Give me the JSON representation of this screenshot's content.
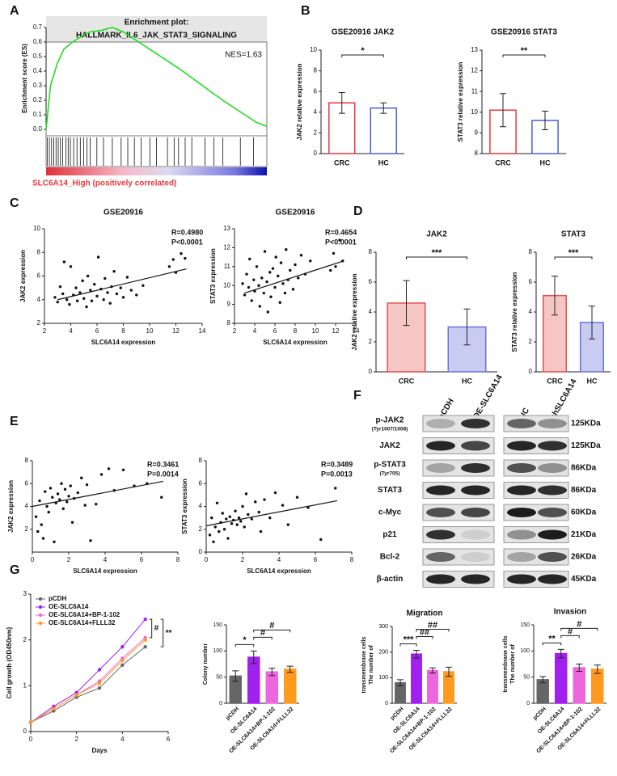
{
  "panels": [
    "A",
    "B",
    "C",
    "D",
    "E",
    "F",
    "G"
  ],
  "chart_data": [
    {
      "type": "enrichment",
      "title": "Enrichment plot:",
      "subtitle": "HALLMARK_IL6_JAK_STAT3_SIGNALING",
      "ylabel": "Enrichment score (ES)",
      "annotation": "NES=1.63",
      "footer": "SLC6A14_High (positively correlated)",
      "color": "#22dd22",
      "x": [
        0,
        0.02,
        0.05,
        0.08,
        0.12,
        0.16,
        0.2,
        0.25,
        0.3,
        0.35,
        0.4,
        0.5,
        0.6,
        0.7,
        0.8,
        0.9,
        0.95,
        1.0
      ],
      "values": [
        0,
        0.3,
        0.45,
        0.55,
        0.6,
        0.64,
        0.67,
        0.68,
        0.7,
        0.67,
        0.62,
        0.52,
        0.42,
        0.31,
        0.2,
        0.1,
        0.05,
        0.02
      ],
      "hits": [
        0.005,
        0.015,
        0.025,
        0.035,
        0.045,
        0.055,
        0.065,
        0.075,
        0.09,
        0.1,
        0.11,
        0.125,
        0.14,
        0.155,
        0.17,
        0.185,
        0.2,
        0.23,
        0.26,
        0.3,
        0.34,
        0.37,
        0.4,
        0.43,
        0.47,
        0.5,
        0.55,
        0.58,
        0.6,
        0.63,
        0.66,
        0.72,
        0.76,
        0.8,
        0.88,
        0.94
      ],
      "xlim": [
        0,
        1
      ],
      "ylim": [
        0,
        0.7
      ],
      "yticks": [
        {
          "value": 0,
          "label": "0.0"
        },
        0.1,
        0.2,
        0.3,
        0.4,
        0.5,
        0.6,
        0.7
      ]
    },
    {
      "type": "bar",
      "title": "GSE20916 JAK2",
      "ylabel": "JAK2 relative expression",
      "categories": [
        "CRC",
        "HC"
      ],
      "values": [
        4.9,
        4.4
      ],
      "errors": [
        1.0,
        0.5
      ],
      "colors": [
        "#ffffff",
        "#ffffff"
      ],
      "edge_colors": [
        "#e8383d",
        "#4a5fd6"
      ],
      "ylim": [
        0,
        10
      ],
      "yticks": [
        0,
        2,
        4,
        6,
        8,
        10
      ],
      "significance": [
        {
          "label": "*",
          "between": [
            "CRC",
            "HC"
          ]
        }
      ]
    },
    {
      "type": "bar",
      "title": "GSE20916 STAT3",
      "ylabel": "STAT3 relative expression",
      "categories": [
        "CRC",
        "HC"
      ],
      "values": [
        10.1,
        9.6
      ],
      "errors": [
        0.8,
        0.45
      ],
      "colors": [
        "#ffffff",
        "#ffffff"
      ],
      "edge_colors": [
        "#e8383d",
        "#4a5fd6"
      ],
      "ylim": [
        8,
        13
      ],
      "yticks": [
        8,
        9,
        10,
        11,
        12,
        13
      ],
      "significance": [
        {
          "label": "**",
          "between": [
            "CRC",
            "HC"
          ]
        }
      ]
    },
    {
      "type": "scatter",
      "title": "GSE20916",
      "xlabel": "SLC6A14 expression",
      "ylabel": "JAK2 expression",
      "stats": [
        "R=0.4980",
        "P<0.0001"
      ],
      "x": [
        2.8,
        3.0,
        3.2,
        3.4,
        3.5,
        3.7,
        3.9,
        4.0,
        4.2,
        4.4,
        4.5,
        4.7,
        4.9,
        5.0,
        5.2,
        5.3,
        5.5,
        5.6,
        5.8,
        6.0,
        6.1,
        6.3,
        6.5,
        6.6,
        6.8,
        7.0,
        7.1,
        7.3,
        7.5,
        7.8,
        8.0,
        8.3,
        8.6,
        9.0,
        9.5,
        11.5,
        11.8,
        12.0,
        12.4,
        12.7
      ],
      "values": [
        4.2,
        3.8,
        5.1,
        4.5,
        7.2,
        4.0,
        3.6,
        6.8,
        4.4,
        5.0,
        3.9,
        4.6,
        5.6,
        4.1,
        3.4,
        6.0,
        4.8,
        3.9,
        5.3,
        4.3,
        7.6,
        4.9,
        4.0,
        5.8,
        4.6,
        3.7,
        5.1,
        6.4,
        4.5,
        5.0,
        4.2,
        5.9,
        4.8,
        4.4,
        5.2,
        6.8,
        7.4,
        6.3,
        7.9,
        7.5
      ],
      "fit_x": [
        3,
        12.8
      ],
      "fit_y": [
        4.0,
        6.6
      ],
      "xlim": [
        2,
        14
      ],
      "xticks": [
        2,
        4,
        6,
        8,
        10,
        12,
        14
      ],
      "ylim": [
        2,
        10
      ],
      "yticks": [
        2,
        4,
        6,
        8,
        10
      ]
    },
    {
      "type": "scatter",
      "title": "GSE20916",
      "xlabel": "SLC6A14 expression",
      "ylabel": "STAT3 expression",
      "stats": [
        "R=0.4654",
        "P<0.0001"
      ],
      "x": [
        2.8,
        3.0,
        3.2,
        3.4,
        3.5,
        3.7,
        3.9,
        4.0,
        4.2,
        4.4,
        4.5,
        4.7,
        4.9,
        5.0,
        5.2,
        5.3,
        5.5,
        5.6,
        5.8,
        6.0,
        6.1,
        6.3,
        6.5,
        6.6,
        6.8,
        7.0,
        7.1,
        7.3,
        7.5,
        7.8,
        8.0,
        8.3,
        8.6,
        9.0,
        9.5,
        11.5,
        11.8,
        12.0,
        12.4,
        12.7
      ],
      "values": [
        10.1,
        9.5,
        10.6,
        9.9,
        11.4,
        9.2,
        10.3,
        9.7,
        11.0,
        10.0,
        8.9,
        10.4,
        9.6,
        11.8,
        10.2,
        8.6,
        10.7,
        9.4,
        10.9,
        9.9,
        11.5,
        10.5,
        9.1,
        11.2,
        10.1,
        9.6,
        11.9,
        10.3,
        10.8,
        9.8,
        11.1,
        10.4,
        11.6,
        10.6,
        11.3,
        10.8,
        11.7,
        11.0,
        12.4,
        11.3
      ],
      "fit_x": [
        3,
        12.8
      ],
      "fit_y": [
        9.6,
        11.3
      ],
      "xlim": [
        2,
        14
      ],
      "xticks": [
        2,
        4,
        6,
        8,
        10,
        12,
        14
      ],
      "ylim": [
        8,
        13
      ],
      "yticks": [
        8,
        9,
        10,
        11,
        12,
        13
      ]
    },
    {
      "type": "bar",
      "title": "JAK2",
      "ylabel": "JAK2 relative expression",
      "categories": [
        "CRC",
        "HC"
      ],
      "values": [
        4.6,
        3.0
      ],
      "errors": [
        1.5,
        1.2
      ],
      "colors": [
        "#f6c6c6",
        "#c9ccf2"
      ],
      "edge_colors": [
        "#e05050",
        "#6a73d8"
      ],
      "ylim": [
        0,
        8
      ],
      "yticks": [
        0,
        2,
        4,
        6,
        8
      ],
      "significance": [
        {
          "label": "***",
          "between": [
            "CRC",
            "HC"
          ]
        }
      ]
    },
    {
      "type": "bar",
      "title": "STAT3",
      "ylabel": "STAT3 relative expression",
      "categories": [
        "CRC",
        "HC"
      ],
      "values": [
        5.1,
        3.3
      ],
      "errors": [
        1.3,
        1.1
      ],
      "colors": [
        "#f6c6c6",
        "#c9ccf2"
      ],
      "edge_colors": [
        "#e05050",
        "#6a73d8"
      ],
      "ylim": [
        0,
        8
      ],
      "yticks": [
        0,
        2,
        4,
        6,
        8
      ],
      "significance": [
        {
          "label": "***",
          "between": [
            "CRC",
            "HC"
          ]
        }
      ]
    },
    {
      "type": "scatter",
      "xlabel": "SLC6A14 expression",
      "ylabel": "JAK2 expression",
      "stats": [
        "R=0.3461",
        "P=0.0014"
      ],
      "x": [
        0.2,
        0.3,
        0.4,
        0.5,
        0.6,
        0.7,
        0.8,
        0.9,
        1.0,
        1.1,
        1.2,
        1.3,
        1.4,
        1.5,
        1.6,
        1.7,
        1.8,
        1.9,
        2.0,
        2.1,
        2.2,
        2.3,
        2.5,
        2.7,
        2.9,
        3.0,
        3.2,
        3.5,
        3.8,
        4.2,
        4.5,
        5.0,
        5.6,
        6.3,
        7.1
      ],
      "values": [
        3.1,
        1.8,
        4.5,
        2.4,
        1.2,
        5.3,
        4.0,
        3.5,
        5.6,
        4.8,
        0.9,
        4.3,
        5.1,
        4.6,
        6.0,
        3.8,
        5.5,
        4.4,
        4.9,
        5.8,
        2.6,
        4.7,
        5.2,
        6.5,
        4.1,
        5.9,
        1.0,
        4.2,
        6.8,
        7.3,
        5.4,
        7.2,
        5.8,
        6.0,
        4.8
      ],
      "fit_x": [
        0,
        7.2
      ],
      "fit_y": [
        4.0,
        6.2
      ],
      "xlim": [
        0,
        8
      ],
      "xticks": [
        0,
        2,
        4,
        6,
        8
      ],
      "ylim": [
        0,
        8
      ],
      "yticks": [
        2,
        4,
        6,
        8
      ]
    },
    {
      "type": "scatter",
      "xlabel": "SLC6A14 expression",
      "ylabel": "STAT3 expression",
      "stats": [
        "R=0.3489",
        "P=0.0013"
      ],
      "x": [
        0.2,
        0.3,
        0.4,
        0.5,
        0.6,
        0.7,
        0.8,
        0.9,
        1.0,
        1.1,
        1.2,
        1.3,
        1.4,
        1.5,
        1.6,
        1.7,
        1.8,
        1.9,
        2.0,
        2.1,
        2.2,
        2.3,
        2.5,
        2.7,
        2.9,
        3.0,
        3.2,
        3.5,
        3.8,
        4.2,
        4.5,
        5.0,
        5.6,
        6.3,
        7.1
      ],
      "values": [
        1.5,
        3.0,
        0.9,
        2.2,
        4.3,
        1.8,
        2.6,
        3.4,
        2.0,
        2.9,
        1.2,
        3.1,
        2.5,
        2.8,
        3.6,
        2.4,
        3.0,
        2.7,
        4.0,
        2.2,
        5.1,
        3.3,
        2.9,
        4.4,
        3.5,
        1.8,
        4.6,
        3.0,
        5.2,
        4.1,
        2.4,
        4.8,
        3.9,
        1.1,
        5.6
      ],
      "fit_x": [
        0,
        7.2
      ],
      "fit_y": [
        2.3,
        4.5
      ],
      "xlim": [
        0,
        8
      ],
      "xticks": [
        0,
        2,
        4,
        6,
        8
      ],
      "ylim": [
        0,
        8
      ],
      "yticks": [
        0,
        2,
        4,
        6,
        8
      ]
    },
    {
      "type": "line",
      "xlabel": "Days",
      "ylabel": "Cell growth (OD450nm)",
      "x": [
        0,
        1,
        2,
        3,
        4,
        5
      ],
      "xlim": [
        0,
        6
      ],
      "xticks": [
        0,
        2,
        4,
        6
      ],
      "ylim": [
        0,
        3
      ],
      "yticks": [
        0,
        1,
        2,
        3
      ],
      "series": [
        {
          "name": "pCDH",
          "color": "#666666",
          "values": [
            0.2,
            0.45,
            0.75,
            0.95,
            1.45,
            1.85
          ]
        },
        {
          "name": "OE-SLC6A14",
          "color": "#a020f0",
          "values": [
            0.2,
            0.55,
            0.85,
            1.35,
            1.85,
            2.45
          ]
        },
        {
          "name": "OE-SLC6A14+BP-1-102",
          "color": "#ee66dd",
          "values": [
            0.2,
            0.5,
            0.8,
            1.1,
            1.6,
            2.05
          ]
        },
        {
          "name": "OE-SLC6A14+FLLL32",
          "color": "#ff9a1f",
          "values": [
            0.2,
            0.5,
            0.8,
            1.05,
            1.55,
            2.0
          ]
        }
      ],
      "significance": [
        {
          "label": "#",
          "between": [
            "OE-SLC6A14",
            "OE-SLC6A14+BP-1-102"
          ]
        },
        {
          "label": "**",
          "between": [
            "OE-SLC6A14",
            "pCDH"
          ]
        }
      ]
    },
    {
      "type": "bar",
      "ylabel": "Colony number",
      "categories": [
        "pCDH",
        "OE-SLC6A14",
        "OE-SLC6A14+BP-1-102",
        "OE-SLC6A14+FLLL32"
      ],
      "values": [
        52,
        88,
        60,
        65
      ],
      "errors": [
        10,
        12,
        7,
        6
      ],
      "colors": [
        "#666666",
        "#a020f0",
        "#ee66dd",
        "#ff9a1f"
      ],
      "edge_colors": [
        "#666666",
        "#a020f0",
        "#ee66dd",
        "#ff9a1f"
      ],
      "ylim": [
        0,
        150
      ],
      "yticks": [
        0,
        50,
        100,
        150
      ],
      "significance": [
        {
          "label": "*",
          "between": [
            "pCDH",
            "OE-SLC6A14"
          ]
        },
        {
          "label": "#",
          "between": [
            "OE-SLC6A14",
            "OE-SLC6A14+BP-1-102"
          ]
        },
        {
          "label": "#",
          "between": [
            "OE-SLC6A14",
            "OE-SLC6A14+FLLL32"
          ]
        }
      ]
    },
    {
      "type": "bar",
      "title": "Migration",
      "ylabel": [
        "The number of",
        "transmembrane cells"
      ],
      "categories": [
        "pCDH",
        "OE-SLC6A14",
        "OE-SLC6A14+BP-1-102",
        "OE-SLC6A14+FLLL32"
      ],
      "values": [
        80,
        192,
        128,
        123
      ],
      "errors": [
        12,
        15,
        10,
        18
      ],
      "colors": [
        "#666666",
        "#a020f0",
        "#ee66dd",
        "#ff9a1f"
      ],
      "edge_colors": [
        "#666666",
        "#a020f0",
        "#ee66dd",
        "#ff9a1f"
      ],
      "ylim": [
        0,
        300
      ],
      "yticks": [
        0,
        100,
        200,
        300
      ],
      "significance": [
        {
          "label": "***",
          "between": [
            "pCDH",
            "OE-SLC6A14"
          ]
        },
        {
          "label": "##",
          "between": [
            "OE-SLC6A14",
            "OE-SLC6A14+BP-1-102"
          ]
        },
        {
          "label": "##",
          "between": [
            "OE-SLC6A14",
            "OE-SLC6A14+FLLL32"
          ]
        }
      ]
    },
    {
      "type": "bar",
      "title": "Invasion",
      "ylabel": [
        "The number of",
        "transmembrane cells"
      ],
      "categories": [
        "pCDH",
        "OE-SLC6A14",
        "OE-SLC6A14+BP-1-102",
        "OE-SLC6A14+FLLL32"
      ],
      "values": [
        45,
        95,
        68,
        65
      ],
      "errors": [
        6,
        8,
        7,
        8
      ],
      "colors": [
        "#666666",
        "#a020f0",
        "#ee66dd",
        "#ff9a1f"
      ],
      "edge_colors": [
        "#666666",
        "#a020f0",
        "#ee66dd",
        "#ff9a1f"
      ],
      "ylim": [
        0,
        150
      ],
      "yticks": [
        0,
        50,
        100,
        150
      ],
      "significance": [
        {
          "label": "**",
          "between": [
            "pCDH",
            "OE-SLC6A14"
          ]
        },
        {
          "label": "#",
          "between": [
            "OE-SLC6A14",
            "OE-SLC6A14+BP-1-102"
          ]
        },
        {
          "label": "#",
          "between": [
            "OE-SLC6A14",
            "OE-SLC6A14+FLLL32"
          ]
        }
      ]
    }
  ],
  "blot": {
    "left_lanes": [
      "pCDH",
      "OE-SLC6A14"
    ],
    "right_lanes": [
      "NC",
      "shSLC6A14"
    ],
    "rows": [
      {
        "label": "p-JAK2",
        "sublabel": "(Tyr1007/1008)",
        "size": "125KDa"
      },
      {
        "label": "JAK2",
        "size": "125KDa"
      },
      {
        "label": "p-STAT3",
        "sublabel": "(Tyr705)",
        "size": "86KDa"
      },
      {
        "label": "STAT3",
        "size": "86KDa"
      },
      {
        "label": "c-Myc",
        "size": "60KDa"
      },
      {
        "label": "p21",
        "size": "21KDa"
      },
      {
        "label": "Bcl-2",
        "size": "26KDa"
      },
      {
        "label": "β-actin",
        "size": "45KDa"
      }
    ]
  }
}
